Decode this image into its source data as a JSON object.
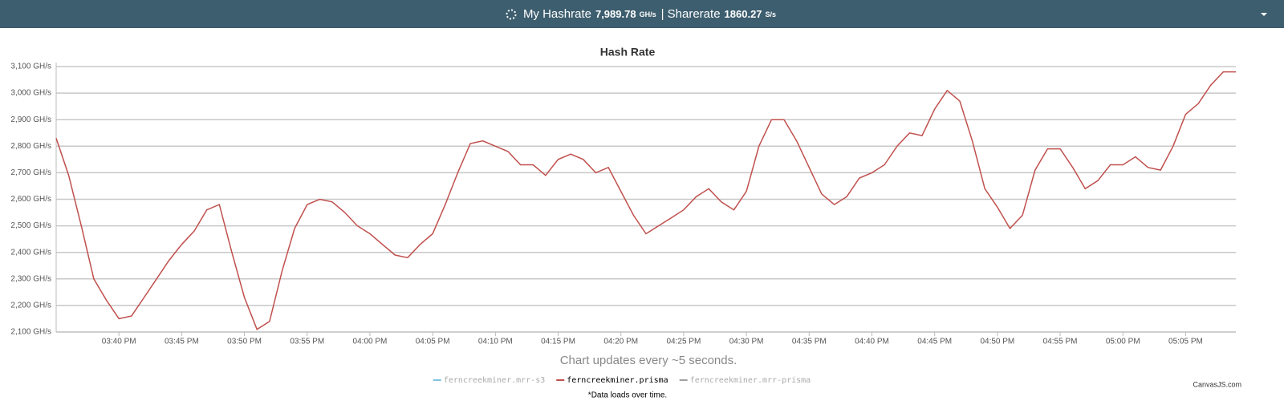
{
  "header": {
    "hashrate_label": "My Hashrate",
    "hashrate": "7,989.78",
    "hashrate_unit": "GH/s",
    "sharerate_label": "| Sharerate",
    "sharerate": "1860.27",
    "sharerate_unit": "S/s"
  },
  "chart_data": {
    "type": "line",
    "title": "Hash Rate",
    "subtitle": "Chart updates every ~5 seconds.",
    "x": [
      "03:35 PM",
      "03:36 PM",
      "03:37 PM",
      "03:38 PM",
      "03:39 PM",
      "03:40 PM",
      "03:41 PM",
      "03:42 PM",
      "03:43 PM",
      "03:44 PM",
      "03:45 PM",
      "03:46 PM",
      "03:47 PM",
      "03:48 PM",
      "03:49 PM",
      "03:50 PM",
      "03:51 PM",
      "03:52 PM",
      "03:53 PM",
      "03:54 PM",
      "03:55 PM",
      "03:56 PM",
      "03:57 PM",
      "03:58 PM",
      "03:59 PM",
      "04:00 PM",
      "04:01 PM",
      "04:02 PM",
      "04:03 PM",
      "04:04 PM",
      "04:05 PM",
      "04:06 PM",
      "04:07 PM",
      "04:08 PM",
      "04:09 PM",
      "04:10 PM",
      "04:11 PM",
      "04:12 PM",
      "04:13 PM",
      "04:14 PM",
      "04:15 PM",
      "04:16 PM",
      "04:17 PM",
      "04:18 PM",
      "04:19 PM",
      "04:20 PM",
      "04:21 PM",
      "04:22 PM",
      "04:23 PM",
      "04:24 PM",
      "04:25 PM",
      "04:26 PM",
      "04:27 PM",
      "04:28 PM",
      "04:29 PM",
      "04:30 PM",
      "04:31 PM",
      "04:32 PM",
      "04:33 PM",
      "04:34 PM",
      "04:35 PM",
      "04:36 PM",
      "04:37 PM",
      "04:38 PM",
      "04:39 PM",
      "04:40 PM",
      "04:41 PM",
      "04:42 PM",
      "04:43 PM",
      "04:44 PM",
      "04:45 PM",
      "04:46 PM",
      "04:47 PM",
      "04:48 PM",
      "04:49 PM",
      "04:50 PM",
      "04:51 PM",
      "04:52 PM",
      "04:53 PM",
      "04:54 PM",
      "04:55 PM",
      "04:56 PM",
      "04:57 PM",
      "04:58 PM",
      "04:59 PM",
      "05:00 PM",
      "05:01 PM",
      "05:02 PM",
      "05:03 PM",
      "05:04 PM",
      "05:05 PM",
      "05:06 PM",
      "05:07 PM",
      "05:08 PM",
      "05:09 PM"
    ],
    "series": [
      {
        "name": "ferncreekminer.mrr-s3",
        "color": "#7fc4e0",
        "visible": false
      },
      {
        "name": "ferncreekminer.prisma",
        "color": "#c0504d",
        "visible": true,
        "values": [
          2830,
          2690,
          2500,
          2300,
          2220,
          2150,
          2160,
          2230,
          2300,
          2370,
          2430,
          2480,
          2560,
          2580,
          2400,
          2230,
          2110,
          2140,
          2330,
          2490,
          2580,
          2600,
          2590,
          2550,
          2500,
          2470,
          2430,
          2390,
          2380,
          2430,
          2470,
          2580,
          2700,
          2810,
          2820,
          2800,
          2780,
          2730,
          2730,
          2690,
          2750,
          2770,
          2750,
          2700,
          2720,
          2630,
          2540,
          2470,
          2500,
          2530,
          2560,
          2610,
          2640,
          2590,
          2560,
          2630,
          2800,
          2900,
          2900,
          2820,
          2720,
          2620,
          2580,
          2610,
          2680,
          2700,
          2730,
          2800,
          2850,
          2840,
          2940,
          3010,
          2970,
          2820,
          2640,
          2570,
          2490,
          2540,
          2710,
          2790,
          2790,
          2720,
          2640,
          2670,
          2730,
          2730,
          2760,
          2720,
          2710,
          2800,
          2920,
          2960,
          3030,
          3080,
          3080
        ]
      },
      {
        "name": "ferncreekminer.mrr-prisma",
        "color": "#a0a0a0",
        "visible": false
      }
    ],
    "xlim": [
      "03:35 PM",
      "05:09 PM"
    ],
    "xticks": [
      "03:40 PM",
      "03:45 PM",
      "03:50 PM",
      "03:55 PM",
      "04:00 PM",
      "04:05 PM",
      "04:10 PM",
      "04:15 PM",
      "04:20 PM",
      "04:25 PM",
      "04:30 PM",
      "04:35 PM",
      "04:40 PM",
      "04:45 PM",
      "04:50 PM",
      "04:55 PM",
      "05:00 PM",
      "05:05 PM"
    ],
    "ylim": [
      2100,
      3100
    ],
    "yticks": [
      {
        "value": 2100,
        "label": "2,100 GH/s"
      },
      {
        "value": 2200,
        "label": "2,200 GH/s"
      },
      {
        "value": 2300,
        "label": "2,300 GH/s"
      },
      {
        "value": 2400,
        "label": "2,400 GH/s"
      },
      {
        "value": 2500,
        "label": "2,500 GH/s"
      },
      {
        "value": 2600,
        "label": "2,600 GH/s"
      },
      {
        "value": 2700,
        "label": "2,700 GH/s"
      },
      {
        "value": 2800,
        "label": "2,800 GH/s"
      },
      {
        "value": 2900,
        "label": "2,900 GH/s"
      },
      {
        "value": 3000,
        "label": "3,000 GH/s"
      },
      {
        "value": 3100,
        "label": "3,100 GH/s"
      }
    ],
    "grid": true,
    "legend": "bottom"
  },
  "footer": {
    "credit": "CanvasJS.com",
    "note": "*Data loads over time."
  }
}
